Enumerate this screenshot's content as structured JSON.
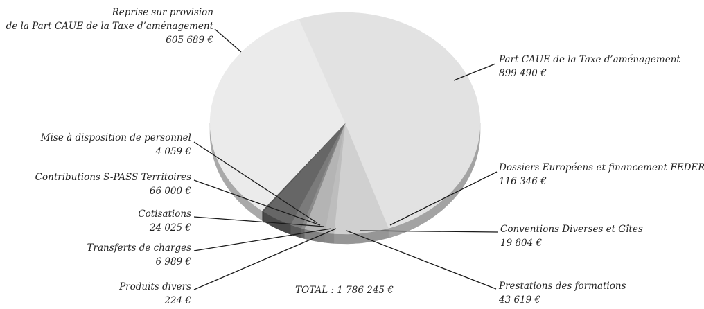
{
  "chart_data": {
    "type": "pie",
    "title": "",
    "total_label": "TOTAL : 1 786 245 €",
    "slices": [
      {
        "name": "Part CAUE de la Taxe d’aménagement",
        "value": 899490,
        "value_label": "899 490 €",
        "color": "#e2e2e2"
      },
      {
        "name": "Dossiers Européens et financement FEDER",
        "value": 116346,
        "value_label": "116 346 €",
        "color": "#d0d0d0"
      },
      {
        "name": "Conventions Diverses et Gîtes",
        "value": 19804,
        "value_label": "19 804 €",
        "color": "#bdbdbd"
      },
      {
        "name": "Prestations des formations",
        "value": 43619,
        "value_label": "43 619 €",
        "color": "#b4b4b4"
      },
      {
        "name": "Produits divers",
        "value": 224,
        "value_label": "224 €",
        "color": "#9a9a9a"
      },
      {
        "name": "Transferts de charges",
        "value": 6989,
        "value_label": "6 989 €",
        "color": "#8c8c8c"
      },
      {
        "name": "Cotisations",
        "value": 24025,
        "value_label": "24 025 €",
        "color": "#7b7b7b"
      },
      {
        "name": "Contributions S-PASS Territoires",
        "value": 66000,
        "value_label": "66 000 €",
        "color": "#666666"
      },
      {
        "name": "Mise à disposition de personnel",
        "value": 4059,
        "value_label": "4 059 €",
        "color": "#555555"
      },
      {
        "name": "Reprise sur provision de la Part CAUE de la Taxe d’aménagement",
        "name_lines": [
          "Reprise sur provision",
          "de la Part CAUE de la Taxe d’aménagement"
        ],
        "value": 605689,
        "value_label": "605 689 €",
        "color": "#ebebeb"
      }
    ]
  }
}
